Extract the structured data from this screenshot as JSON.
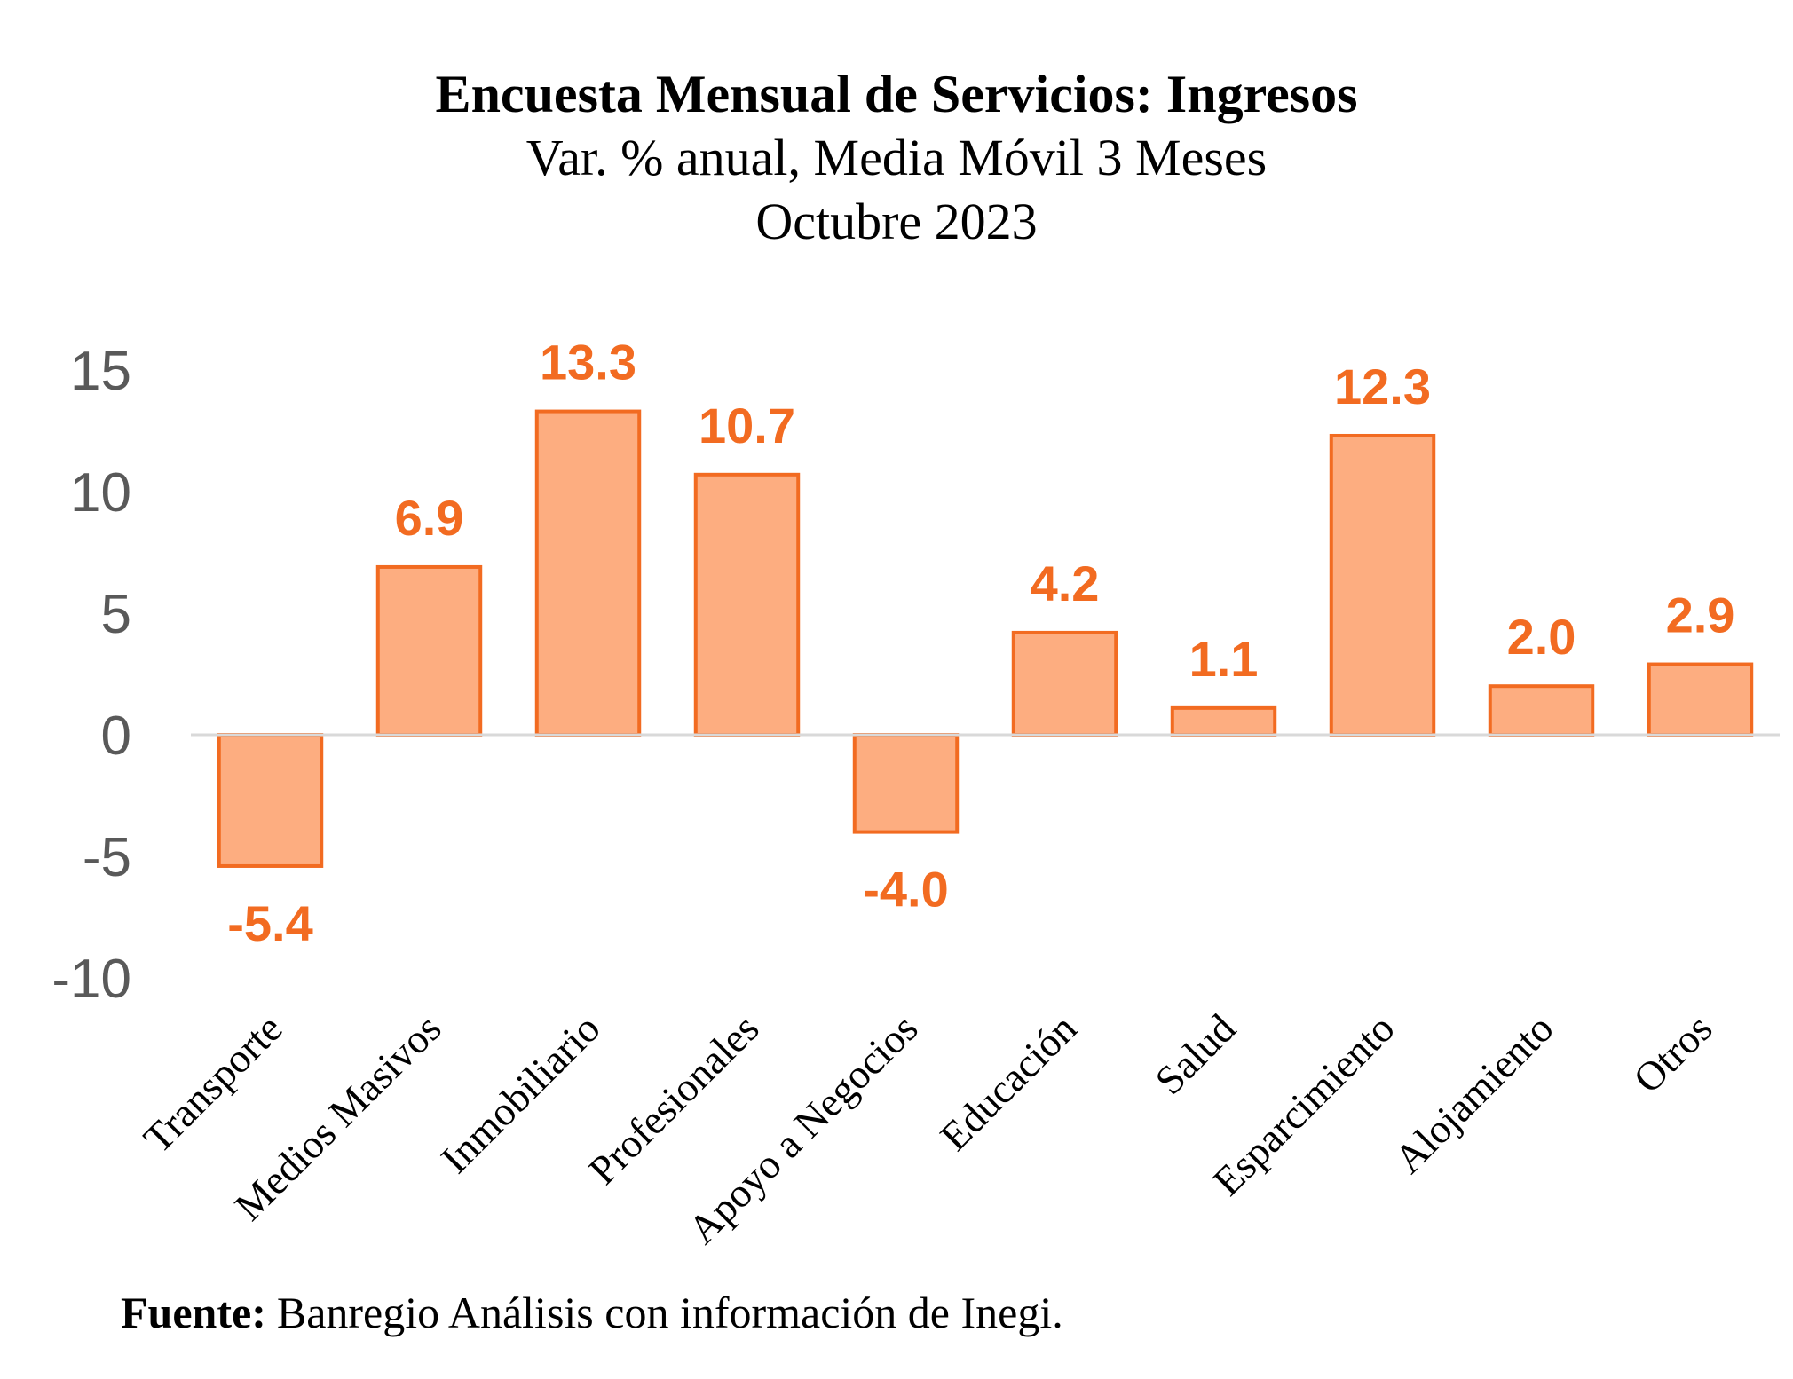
{
  "title": "Encuesta Mensual de Servicios: Ingresos",
  "subtitle": "Var. % anual, Media Móvil 3 Meses",
  "date": "Octubre 2023",
  "footer": {
    "label": "Fuente:",
    "text": "Banregio Análisis con información de Inegi."
  },
  "chart_data": {
    "type": "bar",
    "categories": [
      "Transporte",
      "Medios Masivos",
      "Inmobiliario",
      "Profesionales",
      "Apoyo a Negocios",
      "Educación",
      "Salud",
      "Esparcimiento",
      "Alojamiento",
      "Otros"
    ],
    "values": [
      -5.4,
      6.9,
      13.3,
      10.7,
      -4.0,
      4.2,
      1.1,
      12.3,
      2.0,
      2.9
    ],
    "data_labels": [
      "-5.4",
      "6.9",
      "13.3",
      "10.7",
      "-4.0",
      "4.2",
      "1.1",
      "12.3",
      "2.0",
      "2.9"
    ],
    "yticks": [
      -10,
      -5,
      0,
      5,
      10,
      15
    ],
    "ylim": [
      -10,
      15
    ],
    "grid": false,
    "colors": {
      "bar_fill": "#FDAD80",
      "bar_stroke": "#F26B21",
      "label": "#F26B21",
      "zero_line": "#D9D9D9"
    }
  }
}
